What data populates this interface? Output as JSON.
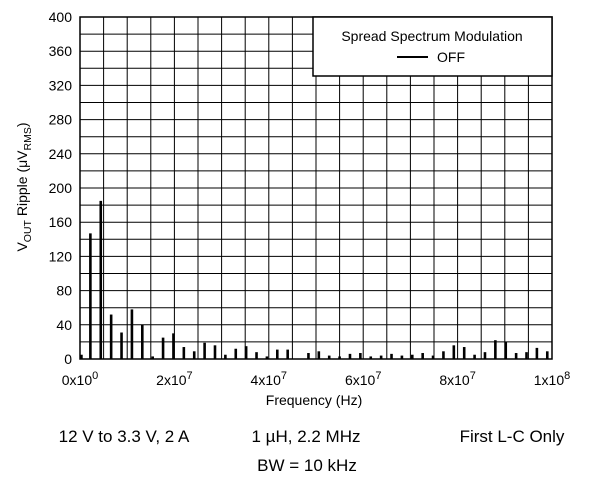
{
  "chart_data": {
    "type": "bar",
    "xlabel": "Frequency (Hz)",
    "ylabel": {
      "parts": [
        {
          "text": "V",
          "sub": false
        },
        {
          "text": "OUT",
          "sub": true
        },
        {
          "text": " Ripple (",
          "sub": false
        },
        {
          "text": "μV",
          "sub": false
        },
        {
          "text": "RMS",
          "sub": true
        },
        {
          "text": ")",
          "sub": false
        }
      ]
    },
    "xlim": [
      0,
      100000000
    ],
    "ylim": [
      0,
      400
    ],
    "grid": true,
    "x_ticks": [
      {
        "value": 0,
        "mantissa": "0x10",
        "exp": "0"
      },
      {
        "value": 20000000,
        "mantissa": "2x10",
        "exp": "7"
      },
      {
        "value": 40000000,
        "mantissa": "4x10",
        "exp": "7"
      },
      {
        "value": 60000000,
        "mantissa": "6x10",
        "exp": "7"
      },
      {
        "value": 80000000,
        "mantissa": "8x10",
        "exp": "7"
      },
      {
        "value": 100000000,
        "mantissa": "1x10",
        "exp": "8"
      }
    ],
    "y_ticks": [
      "0",
      "40",
      "80",
      "120",
      "160",
      "200",
      "240",
      "280",
      "320",
      "360",
      "400"
    ],
    "legend": {
      "title": "Spread Spectrum Modulation",
      "entries": [
        "OFF"
      ],
      "placement": "top-right"
    },
    "series": [
      {
        "name": "OFF",
        "color": "#000000",
        "x": [
          300000,
          2200000,
          4400000,
          6600000,
          8800000,
          11000000,
          13200000,
          15400000,
          17600000,
          19800000,
          22000000,
          24200000,
          26400000,
          28600000,
          30800000,
          33000000,
          35200000,
          37400000,
          39600000,
          41800000,
          44000000,
          48400000,
          50600000,
          52800000,
          55000000,
          57200000,
          59400000,
          61600000,
          63800000,
          66000000,
          68200000,
          70400000,
          72600000,
          74800000,
          77000000,
          79200000,
          81400000,
          83600000,
          85800000,
          88000000,
          90200000,
          92400000,
          94600000,
          96800000,
          99000000
        ],
        "values": [
          5,
          147,
          185,
          52,
          31,
          58,
          40,
          3,
          25,
          30,
          14,
          9,
          19,
          16,
          5,
          12,
          15,
          8,
          3,
          11,
          11,
          7,
          9,
          4,
          3,
          6,
          7,
          3,
          4,
          6,
          4,
          5,
          7,
          4,
          9,
          16,
          14,
          5,
          8,
          22,
          20,
          7,
          8,
          13,
          9
        ]
      }
    ]
  },
  "caption": {
    "line1": {
      "left": "12 V to 3.3 V, 2 A",
      "center": "1 µH, 2.2 MHz",
      "right": "First L-C Only"
    },
    "line2": "BW = 10 kHz"
  }
}
